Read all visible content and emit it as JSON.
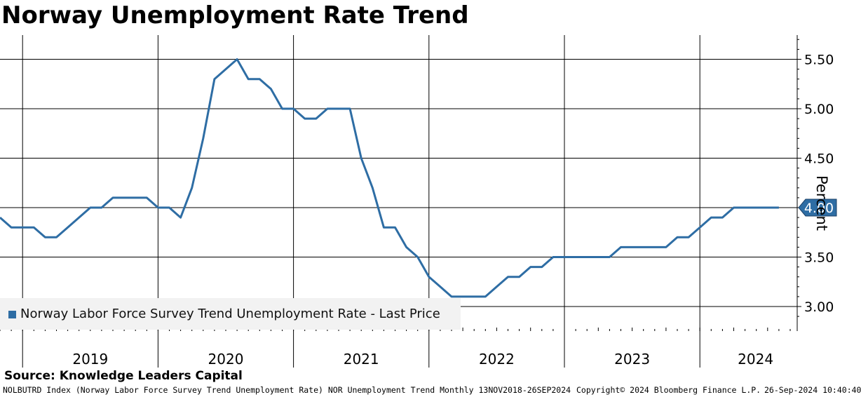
{
  "title": "Norway Unemployment Rate Trend",
  "source": "Source: Knowledge Leaders Capital",
  "footer": {
    "left": "NOLBUTRD Index (Norway Labor Force Survey Trend Unemployment Rate) NOR Unemployment Trend  Monthly 13NOV2018-26SEP2024",
    "copyright": "Copyright© 2024 Bloomberg Finance L.P.",
    "timestamp": "26-Sep-2024 10:40:40"
  },
  "colors": {
    "series": "#2e6da4",
    "legend_bg": "#f2f2f2"
  },
  "chart_data": {
    "type": "line",
    "ylabel": "Percent",
    "ylim": [
      2.9,
      5.7
    ],
    "y_ticks": [
      "3.00",
      "3.50",
      "4.00",
      "4.50",
      "5.00",
      "5.50"
    ],
    "x_labels": [
      "2019",
      "2020",
      "2021",
      "2022",
      "2023",
      "2024"
    ],
    "grid": true,
    "legend_position": "bottom-left",
    "last_value_label": "4.00",
    "series": [
      {
        "name": "Norway Labor Force Survey Trend Unemployment Rate - Last Price",
        "x": [
          "2018-11",
          "2018-12",
          "2019-01",
          "2019-02",
          "2019-03",
          "2019-04",
          "2019-05",
          "2019-06",
          "2019-07",
          "2019-08",
          "2019-09",
          "2019-10",
          "2019-11",
          "2019-12",
          "2020-01",
          "2020-02",
          "2020-03",
          "2020-04",
          "2020-05",
          "2020-06",
          "2020-07",
          "2020-08",
          "2020-09",
          "2020-10",
          "2020-11",
          "2020-12",
          "2021-01",
          "2021-02",
          "2021-03",
          "2021-04",
          "2021-05",
          "2021-06",
          "2021-07",
          "2021-08",
          "2021-09",
          "2021-10",
          "2021-11",
          "2021-12",
          "2022-01",
          "2022-02",
          "2022-03",
          "2022-04",
          "2022-05",
          "2022-06",
          "2022-07",
          "2022-08",
          "2022-09",
          "2022-10",
          "2022-11",
          "2022-12",
          "2023-01",
          "2023-02",
          "2023-03",
          "2023-04",
          "2023-05",
          "2023-06",
          "2023-07",
          "2023-08",
          "2023-09",
          "2023-10",
          "2023-11",
          "2023-12",
          "2024-01",
          "2024-02",
          "2024-03",
          "2024-04",
          "2024-05",
          "2024-06",
          "2024-07",
          "2024-08"
        ],
        "values": [
          3.9,
          3.8,
          3.8,
          3.8,
          3.7,
          3.7,
          3.8,
          3.9,
          4.0,
          4.0,
          4.1,
          4.1,
          4.1,
          4.1,
          4.0,
          4.0,
          3.9,
          4.2,
          4.7,
          5.3,
          5.4,
          5.5,
          5.3,
          5.3,
          5.2,
          5.0,
          5.0,
          4.9,
          4.9,
          5.0,
          5.0,
          5.0,
          4.5,
          4.2,
          3.8,
          3.8,
          3.6,
          3.5,
          3.3,
          3.2,
          3.1,
          3.1,
          3.1,
          3.1,
          3.2,
          3.3,
          3.3,
          3.4,
          3.4,
          3.5,
          3.5,
          3.5,
          3.5,
          3.5,
          3.5,
          3.6,
          3.6,
          3.6,
          3.6,
          3.6,
          3.7,
          3.7,
          3.8,
          3.9,
          3.9,
          4.0,
          4.0,
          4.0,
          4.0,
          4.0
        ]
      }
    ]
  }
}
